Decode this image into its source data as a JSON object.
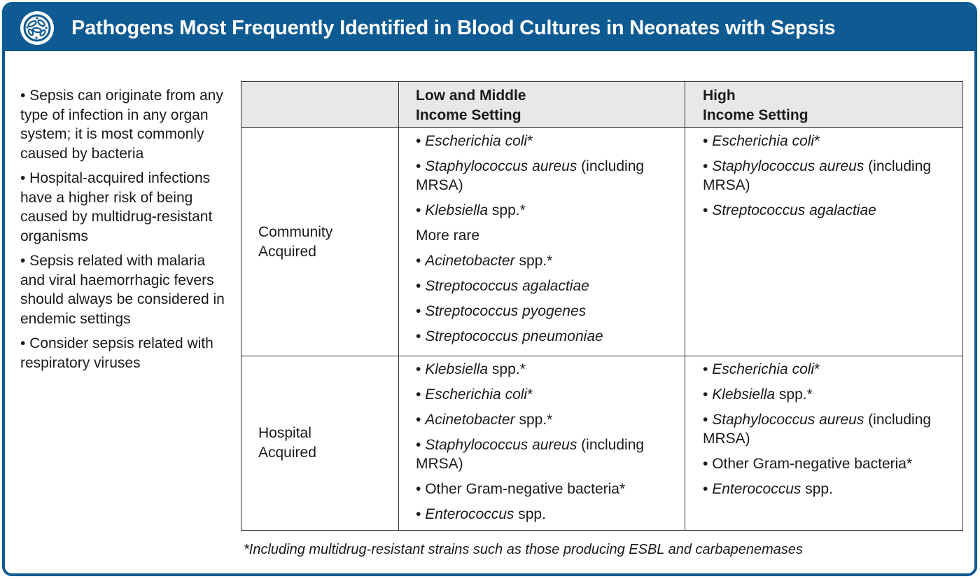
{
  "header": {
    "title": "Pathogens Most Frequently Identified in Blood Cultures in Neonates with Sepsis",
    "icon": "bacteria-icon",
    "color": "#0e5a93"
  },
  "side_bullets": [
    "• Sepsis can originate from any type of infection in any organ system; it is most commonly caused by bacteria",
    "• Hospital-acquired infections have a higher risk of being caused by multidrug-resistant organisms",
    "• Sepsis related with malaria and viral haemorrhagic fevers should always be considered in endemic settings",
    "• Consider sepsis related with respiratory viruses"
  ],
  "table": {
    "columns": [
      "Low and Middle",
      "Income Setting",
      "High",
      "Income Setting"
    ],
    "rows": {
      "community": {
        "label1": "Community",
        "label2": "Acquired",
        "lmic": {
          "items": [
            {
              "bullet": "•",
              "italic": "Escherichia coli",
              "rest": "*"
            },
            {
              "bullet": "•",
              "italic": "Staphylococcus aureus",
              "rest": " (including MRSA)"
            },
            {
              "bullet": "•",
              "italic": "Klebsiella",
              "rest": " spp.*"
            }
          ],
          "more_rare": "More rare",
          "rare_items": [
            {
              "bullet": "•",
              "italic": "Acinetobacter",
              "rest": " spp.*"
            },
            {
              "bullet": "•",
              "italic": "Streptococcus agalactiae",
              "rest": ""
            },
            {
              "bullet": "•",
              "italic": "Streptococcus pyogenes",
              "rest": ""
            },
            {
              "bullet": "•",
              "italic": "Streptococcus pneumoniae",
              "rest": ""
            }
          ]
        },
        "high": {
          "items": [
            {
              "bullet": "•",
              "italic": "Escherichia coli",
              "rest": "*"
            },
            {
              "bullet": "•",
              "italic": "Staphylococcus aureus",
              "rest": " (including MRSA)"
            },
            {
              "bullet": "•",
              "italic": "Streptococcus agalactiae",
              "rest": ""
            }
          ]
        }
      },
      "hospital": {
        "label1": "Hospital",
        "label2": "Acquired",
        "lmic": {
          "items": [
            {
              "bullet": "•",
              "italic": "Klebsiella",
              "rest": " spp.*"
            },
            {
              "bullet": "•",
              "italic": "Escherichia coli",
              "rest": "*"
            },
            {
              "bullet": "•",
              "italic": "Acinetobacter",
              "rest": " spp.*"
            },
            {
              "bullet": "•",
              "italic": "Staphylococcus aureus",
              "rest": " (including MRSA)"
            },
            {
              "bullet": "•",
              "italic": "",
              "rest": "Other Gram-negative bacteria*"
            },
            {
              "bullet": "•",
              "italic": "Enterococcus",
              "rest": " spp."
            }
          ]
        },
        "high": {
          "items": [
            {
              "bullet": "•",
              "italic": "Escherichia coli",
              "rest": "*"
            },
            {
              "bullet": "•",
              "italic": "Klebsiella",
              "rest": " spp.*"
            },
            {
              "bullet": "•",
              "italic": "Staphylococcus aureus",
              "rest": " (including MRSA)"
            },
            {
              "bullet": "•",
              "italic": "",
              "rest": "Other Gram-negative bacteria*"
            },
            {
              "bullet": "•",
              "italic": "Enterococcus",
              "rest": " spp."
            }
          ]
        }
      }
    }
  },
  "footnote": "*Including multidrug-resistant strains such as those producing ESBL and carbapenemases"
}
